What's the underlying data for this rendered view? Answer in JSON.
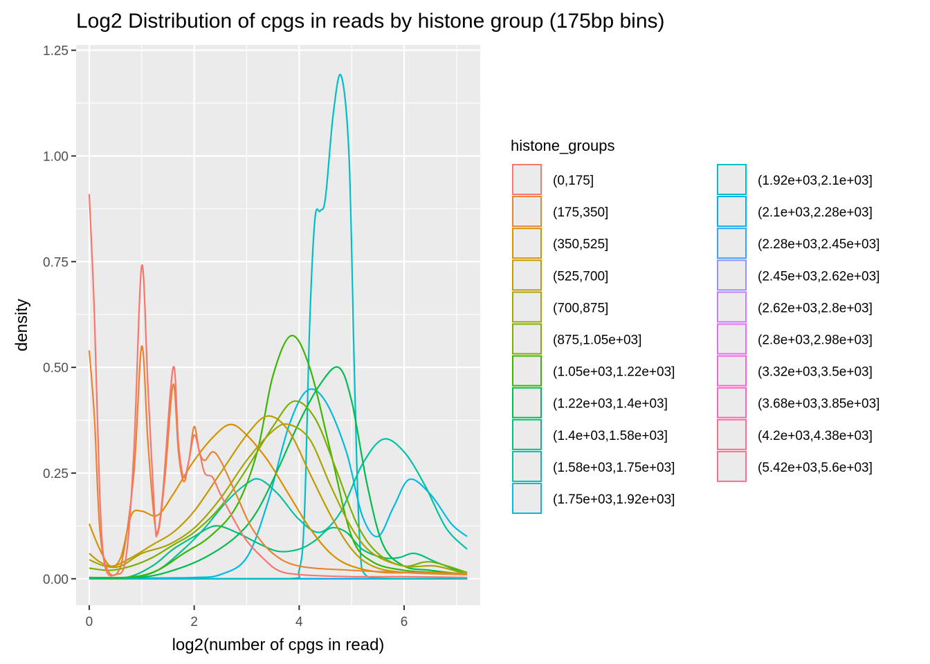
{
  "chart_data": {
    "type": "line",
    "title": "Log2 Distribution of cpgs in reads by histone group (175bp bins)",
    "xlabel": "log2(number of cpgs in read)",
    "ylabel": "density",
    "xlim": [
      -0.25,
      7.45
    ],
    "ylim": [
      -0.0625,
      1.2625
    ],
    "x_ticks": [
      0,
      2,
      4,
      6
    ],
    "x_tick_labels": [
      "0",
      "2",
      "4",
      "6"
    ],
    "y_ticks": [
      0,
      0.25,
      0.5,
      0.75,
      1.0,
      1.25
    ],
    "y_tick_labels": [
      "0.00",
      "0.25",
      "0.50",
      "0.75",
      "1.00",
      "1.25"
    ],
    "grid": true,
    "legend_position": "right",
    "legend_title": "histone_groups",
    "series": [
      {
        "name": "(0,175]",
        "color": "#F8766D",
        "points": [
          [
            0,
            0.91
          ],
          [
            0.1,
            0.62
          ],
          [
            0.2,
            0.2
          ],
          [
            0.3,
            0.03
          ],
          [
            0.5,
            0.01
          ],
          [
            0.7,
            0.05
          ],
          [
            0.85,
            0.3
          ],
          [
            1.0,
            0.74
          ],
          [
            1.12,
            0.45
          ],
          [
            1.25,
            0.14
          ],
          [
            1.3,
            0.11
          ],
          [
            1.4,
            0.2
          ],
          [
            1.6,
            0.5
          ],
          [
            1.7,
            0.32
          ],
          [
            1.8,
            0.24
          ],
          [
            1.9,
            0.28
          ],
          [
            2.0,
            0.34
          ],
          [
            2.1,
            0.3
          ],
          [
            2.2,
            0.25
          ],
          [
            2.35,
            0.24
          ],
          [
            2.5,
            0.2
          ],
          [
            2.8,
            0.13
          ],
          [
            3.0,
            0.09
          ],
          [
            3.3,
            0.05
          ],
          [
            3.6,
            0.02
          ],
          [
            4.0,
            0.01
          ],
          [
            5.0,
            0.005
          ],
          [
            6.0,
            0.005
          ],
          [
            7.2,
            0.003
          ]
        ]
      },
      {
        "name": "(175,350]",
        "color": "#EA8331",
        "points": [
          [
            0,
            0.54
          ],
          [
            0.1,
            0.38
          ],
          [
            0.2,
            0.12
          ],
          [
            0.35,
            0.02
          ],
          [
            0.6,
            0.03
          ],
          [
            0.85,
            0.25
          ],
          [
            1.0,
            0.55
          ],
          [
            1.12,
            0.32
          ],
          [
            1.25,
            0.13
          ],
          [
            1.33,
            0.12
          ],
          [
            1.45,
            0.25
          ],
          [
            1.6,
            0.46
          ],
          [
            1.7,
            0.3
          ],
          [
            1.8,
            0.23
          ],
          [
            1.9,
            0.28
          ],
          [
            2.0,
            0.36
          ],
          [
            2.1,
            0.3
          ],
          [
            2.2,
            0.28
          ],
          [
            2.35,
            0.3
          ],
          [
            2.5,
            0.28
          ],
          [
            2.8,
            0.2
          ],
          [
            3.1,
            0.12
          ],
          [
            3.5,
            0.06
          ],
          [
            4.0,
            0.03
          ],
          [
            5.0,
            0.02
          ],
          [
            6.0,
            0.015
          ],
          [
            7.2,
            0.01
          ]
        ]
      },
      {
        "name": "(350,525]",
        "color": "#D89000",
        "points": [
          [
            0,
            0.13
          ],
          [
            0.2,
            0.07
          ],
          [
            0.4,
            0.03
          ],
          [
            0.6,
            0.05
          ],
          [
            0.8,
            0.15
          ],
          [
            1.0,
            0.16
          ],
          [
            1.3,
            0.15
          ],
          [
            1.6,
            0.2
          ],
          [
            2.0,
            0.28
          ],
          [
            2.4,
            0.34
          ],
          [
            2.7,
            0.365
          ],
          [
            3.0,
            0.34
          ],
          [
            3.4,
            0.28
          ],
          [
            3.8,
            0.2
          ],
          [
            4.2,
            0.12
          ],
          [
            4.6,
            0.06
          ],
          [
            5.0,
            0.03
          ],
          [
            5.6,
            0.015
          ],
          [
            6.4,
            0.015
          ],
          [
            7.2,
            0.012
          ]
        ]
      },
      {
        "name": "(525,700]",
        "color": "#C09B00",
        "points": [
          [
            0,
            0.06
          ],
          [
            0.2,
            0.04
          ],
          [
            0.45,
            0.03
          ],
          [
            0.8,
            0.05
          ],
          [
            1.2,
            0.08
          ],
          [
            1.6,
            0.11
          ],
          [
            2.0,
            0.16
          ],
          [
            2.5,
            0.25
          ],
          [
            3.0,
            0.34
          ],
          [
            3.4,
            0.385
          ],
          [
            3.8,
            0.35
          ],
          [
            4.2,
            0.25
          ],
          [
            4.6,
            0.15
          ],
          [
            5.0,
            0.07
          ],
          [
            5.4,
            0.03
          ],
          [
            6.0,
            0.015
          ],
          [
            7.2,
            0.01
          ]
        ]
      },
      {
        "name": "(700,875]",
        "color": "#A3A500",
        "points": [
          [
            0,
            0.045
          ],
          [
            0.3,
            0.03
          ],
          [
            0.6,
            0.03
          ],
          [
            1.0,
            0.06
          ],
          [
            1.5,
            0.08
          ],
          [
            2.0,
            0.12
          ],
          [
            2.5,
            0.19
          ],
          [
            3.0,
            0.28
          ],
          [
            3.5,
            0.35
          ],
          [
            3.8,
            0.365
          ],
          [
            4.2,
            0.33
          ],
          [
            4.6,
            0.22
          ],
          [
            5.0,
            0.12
          ],
          [
            5.4,
            0.06
          ],
          [
            6.0,
            0.03
          ],
          [
            6.6,
            0.03
          ],
          [
            7.2,
            0.01
          ]
        ]
      },
      {
        "name": "(875,1.05e+03]",
        "color": "#7CAE00",
        "points": [
          [
            0,
            0.025
          ],
          [
            0.4,
            0.02
          ],
          [
            0.8,
            0.03
          ],
          [
            1.2,
            0.05
          ],
          [
            1.6,
            0.08
          ],
          [
            2.0,
            0.11
          ],
          [
            2.5,
            0.17
          ],
          [
            3.0,
            0.26
          ],
          [
            3.5,
            0.36
          ],
          [
            3.9,
            0.42
          ],
          [
            4.3,
            0.38
          ],
          [
            4.7,
            0.26
          ],
          [
            5.1,
            0.13
          ],
          [
            5.5,
            0.06
          ],
          [
            6.0,
            0.03
          ],
          [
            6.5,
            0.04
          ],
          [
            7.2,
            0.015
          ]
        ]
      },
      {
        "name": "(1.05e+03,1.22e+03]",
        "color": "#39B600",
        "points": [
          [
            0,
            0.003
          ],
          [
            0.8,
            0.004
          ],
          [
            1.3,
            0.02
          ],
          [
            1.8,
            0.06
          ],
          [
            2.3,
            0.1
          ],
          [
            2.8,
            0.17
          ],
          [
            3.2,
            0.3
          ],
          [
            3.5,
            0.48
          ],
          [
            3.85,
            0.575
          ],
          [
            4.2,
            0.5
          ],
          [
            4.6,
            0.3
          ],
          [
            5.0,
            0.1
          ],
          [
            5.4,
            0.04
          ],
          [
            6.0,
            0.02
          ],
          [
            6.6,
            0.015
          ],
          [
            7.2,
            0.01
          ]
        ]
      },
      {
        "name": "(1.22e+03,1.4e+03]",
        "color": "#00BB4E",
        "points": [
          [
            0,
            0.003
          ],
          [
            1.0,
            0.004
          ],
          [
            1.6,
            0.02
          ],
          [
            2.2,
            0.05
          ],
          [
            2.8,
            0.1
          ],
          [
            3.2,
            0.16
          ],
          [
            3.6,
            0.26
          ],
          [
            4.0,
            0.37
          ],
          [
            4.4,
            0.46
          ],
          [
            4.75,
            0.5
          ],
          [
            5.0,
            0.42
          ],
          [
            5.3,
            0.22
          ],
          [
            5.6,
            0.08
          ],
          [
            6.0,
            0.03
          ],
          [
            6.5,
            0.02
          ],
          [
            7.2,
            0.01
          ]
        ]
      },
      {
        "name": "(1.4e+03,1.58e+03]",
        "color": "#00BF7D",
        "points": [
          [
            0,
            0.002
          ],
          [
            0.7,
            0.003
          ],
          [
            1.2,
            0.03
          ],
          [
            1.6,
            0.07
          ],
          [
            2.0,
            0.1
          ],
          [
            2.4,
            0.125
          ],
          [
            2.8,
            0.11
          ],
          [
            3.2,
            0.085
          ],
          [
            3.6,
            0.065
          ],
          [
            4.0,
            0.07
          ],
          [
            4.3,
            0.09
          ],
          [
            4.6,
            0.12
          ],
          [
            4.9,
            0.11
          ],
          [
            5.2,
            0.07
          ],
          [
            5.6,
            0.05
          ],
          [
            5.9,
            0.05
          ],
          [
            6.2,
            0.06
          ],
          [
            6.6,
            0.04
          ],
          [
            7.2,
            0.01
          ]
        ]
      },
      {
        "name": "(1.58e+03,1.75e+03]",
        "color": "#00C1A3",
        "points": [
          [
            0,
            0.002
          ],
          [
            0.8,
            0.003
          ],
          [
            1.3,
            0.02
          ],
          [
            1.8,
            0.07
          ],
          [
            2.2,
            0.12
          ],
          [
            2.6,
            0.18
          ],
          [
            3.0,
            0.225
          ],
          [
            3.25,
            0.235
          ],
          [
            3.6,
            0.2
          ],
          [
            4.0,
            0.14
          ],
          [
            4.4,
            0.11
          ],
          [
            4.8,
            0.16
          ],
          [
            5.2,
            0.27
          ],
          [
            5.6,
            0.33
          ],
          [
            6.0,
            0.3
          ],
          [
            6.4,
            0.22
          ],
          [
            6.8,
            0.12
          ],
          [
            7.2,
            0.07
          ]
        ]
      },
      {
        "name": "(1.75e+03,1.92e+03]",
        "color": "#00BAE0",
        "points": [
          [
            0,
            0.002
          ],
          [
            1.0,
            0.002
          ],
          [
            2.0,
            0.003
          ],
          [
            2.5,
            0.01
          ],
          [
            3.0,
            0.05
          ],
          [
            3.4,
            0.18
          ],
          [
            3.8,
            0.36
          ],
          [
            4.15,
            0.445
          ],
          [
            4.5,
            0.42
          ],
          [
            4.9,
            0.3
          ],
          [
            5.2,
            0.15
          ],
          [
            5.5,
            0.1
          ],
          [
            5.8,
            0.17
          ],
          [
            6.1,
            0.235
          ],
          [
            6.5,
            0.2
          ],
          [
            6.9,
            0.13
          ],
          [
            7.2,
            0.1
          ]
        ]
      },
      {
        "name": "(1.92e+03,2.1e+03]",
        "color": "#00BFC4",
        "points": [
          [
            0,
            0.0
          ],
          [
            2.0,
            0.0
          ],
          [
            3.8,
            0.0
          ],
          [
            4.0,
            0.02
          ],
          [
            4.1,
            0.15
          ],
          [
            4.2,
            0.6
          ],
          [
            4.3,
            0.85
          ],
          [
            4.4,
            0.87
          ],
          [
            4.5,
            0.9
          ],
          [
            4.65,
            1.1
          ],
          [
            4.8,
            1.19
          ],
          [
            4.95,
            1.0
          ],
          [
            5.05,
            0.5
          ],
          [
            5.15,
            0.1
          ],
          [
            5.3,
            0.005
          ],
          [
            6.0,
            0.0
          ],
          [
            7.2,
            0.0
          ]
        ]
      },
      {
        "name": "(2.1e+03,2.28e+03]",
        "color": "#00B0F6",
        "points": [
          [
            0,
            0.0
          ],
          [
            7.2,
            0.0
          ]
        ]
      },
      {
        "name": "(2.28e+03,2.45e+03]",
        "color": "#35A2FF",
        "points": [
          [
            0,
            0.0
          ],
          [
            7.2,
            0.0
          ]
        ]
      },
      {
        "name": "(2.45e+03,2.62e+03]",
        "color": "#9590FF",
        "points": [
          [
            0,
            0.0
          ],
          [
            7.2,
            0.0
          ]
        ]
      },
      {
        "name": "(2.62e+03,2.8e+03]",
        "color": "#C77CFF",
        "points": [
          [
            0,
            0.0
          ],
          [
            7.2,
            0.0
          ]
        ]
      },
      {
        "name": "(2.8e+03,2.98e+03]",
        "color": "#E76BF3",
        "points": [
          [
            0,
            0.0
          ],
          [
            7.2,
            0.0
          ]
        ]
      },
      {
        "name": "(3.32e+03,3.5e+03]",
        "color": "#FA62DB",
        "points": [
          [
            0,
            0.0
          ],
          [
            7.2,
            0.0
          ]
        ]
      },
      {
        "name": "(3.68e+03,3.85e+03]",
        "color": "#FF62BC",
        "points": [
          [
            0,
            0.0
          ],
          [
            7.2,
            0.0
          ]
        ]
      },
      {
        "name": "(4.2e+03,4.38e+03]",
        "color": "#FF6C91",
        "points": [
          [
            0,
            0.0
          ],
          [
            7.2,
            0.0
          ]
        ]
      },
      {
        "name": "(5.42e+03,5.6e+03]",
        "color": "#FF6C91",
        "points": [
          [
            0,
            0.0
          ],
          [
            7.2,
            0.0
          ]
        ]
      }
    ]
  }
}
